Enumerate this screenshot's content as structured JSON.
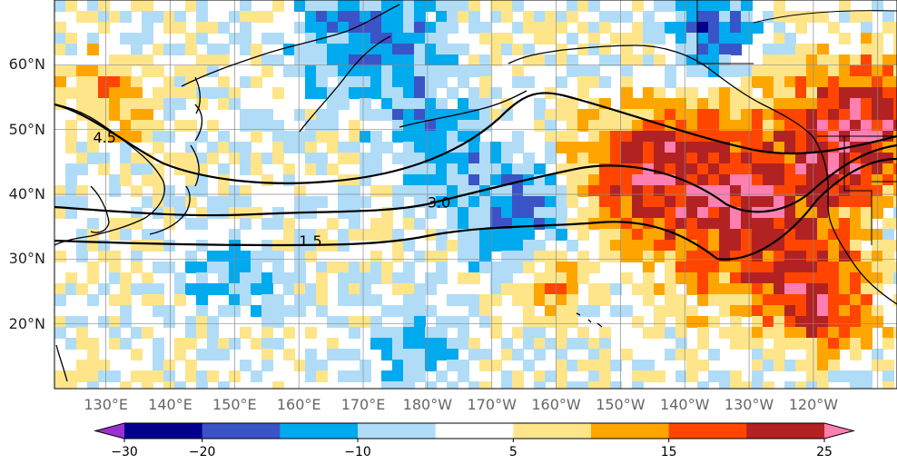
{
  "map": {
    "lat_labels": [
      {
        "text": "60°N",
        "lat": 60
      },
      {
        "text": "50°N",
        "lat": 50
      },
      {
        "text": "40°N",
        "lat": 40
      },
      {
        "text": "30°N",
        "lat": 30
      },
      {
        "text": "20°N",
        "lat": 20
      }
    ],
    "lon_labels": [
      {
        "text": "130°E",
        "lon": 130
      },
      {
        "text": "140°E",
        "lon": 140
      },
      {
        "text": "150°E",
        "lon": 150
      },
      {
        "text": "160°E",
        "lon": 160
      },
      {
        "text": "170°E",
        "lon": 170
      },
      {
        "text": "180°W",
        "lon": 180
      },
      {
        "text": "170°W",
        "lon": 190
      },
      {
        "text": "160°W",
        "lon": 200
      },
      {
        "text": "150°W",
        "lon": 210
      },
      {
        "text": "140°W",
        "lon": 220
      },
      {
        "text": "130°W",
        "lon": 230
      },
      {
        "text": "120°W",
        "lon": 240
      }
    ],
    "extent": {
      "lon_min": 122,
      "lon_max": 253,
      "lat_min": 10,
      "lat_max": 70
    },
    "contour_labels": [
      {
        "text": "4.5",
        "lon": 128,
        "lat": 48
      },
      {
        "text": "3.0",
        "lon": 180,
        "lat": 38
      },
      {
        "text": "1.5",
        "lon": 160,
        "lat": 32
      }
    ]
  },
  "colorbar": {
    "levels": [
      -30,
      -25,
      -20,
      -15,
      -10,
      -5,
      5,
      10,
      15,
      20,
      25,
      30
    ],
    "colors": [
      "#9b30d0",
      "#00008b",
      "#3a54c8",
      "#00aaee",
      "#b0dcf8",
      "#ffffff",
      "#ffe58a",
      "#ffa500",
      "#ff4500",
      "#b22222",
      "#ff7fb0"
    ],
    "tick_labels": [
      {
        "text": "−30",
        "value": -30
      },
      {
        "text": "−20",
        "value": -20
      },
      {
        "text": "−10",
        "value": -10
      },
      {
        "text": "5",
        "value": 5
      },
      {
        "text": "15",
        "value": 15
      },
      {
        "text": "25",
        "value": 25
      }
    ]
  }
}
